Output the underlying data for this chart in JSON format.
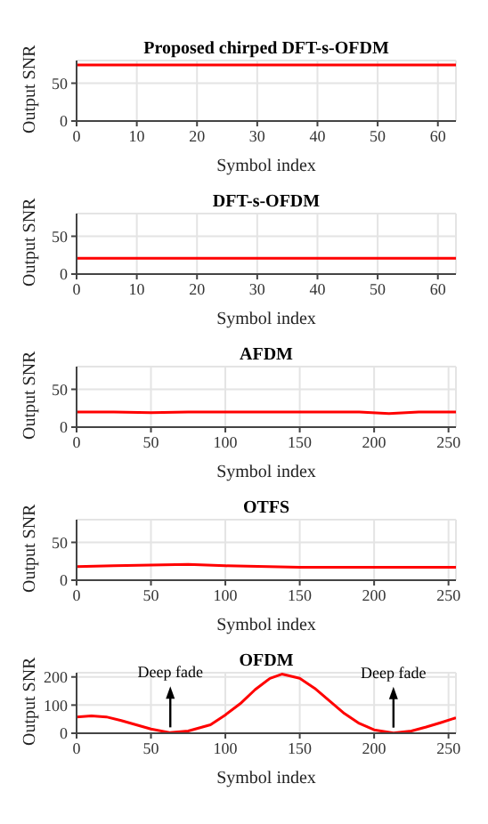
{
  "chart_data": [
    {
      "type": "line",
      "title": "Proposed chirped DFT-s-OFDM",
      "xlabel": "Symbol index",
      "ylabel": "Output SNR",
      "x": [
        0,
        63
      ],
      "series": [
        {
          "color": "#ff0000",
          "values": [
            74,
            74
          ]
        }
      ],
      "xlim": [
        0,
        63
      ],
      "xticks": [
        0,
        10,
        20,
        30,
        40,
        50,
        60
      ],
      "ylim": [
        0,
        80
      ],
      "yticks": [
        0,
        50
      ],
      "grid": true
    },
    {
      "type": "line",
      "title": "DFT-s-OFDM",
      "xlabel": "Symbol index",
      "ylabel": "Output SNR",
      "x": [
        0,
        63
      ],
      "series": [
        {
          "color": "#ff0000",
          "values": [
            21,
            21
          ]
        }
      ],
      "xlim": [
        0,
        63
      ],
      "xticks": [
        0,
        10,
        20,
        30,
        40,
        50,
        60
      ],
      "ylim": [
        0,
        80
      ],
      "yticks": [
        0,
        50
      ],
      "grid": true
    },
    {
      "type": "line",
      "title": "AFDM",
      "xlabel": "Symbol index",
      "ylabel": "Output SNR",
      "x": [
        0,
        25,
        50,
        75,
        100,
        150,
        190,
        210,
        230,
        255
      ],
      "series": [
        {
          "color": "#ff0000",
          "values": [
            20,
            20,
            19,
            20,
            20,
            20,
            20,
            18,
            20,
            20
          ]
        }
      ],
      "xlim": [
        0,
        255
      ],
      "xticks": [
        0,
        50,
        100,
        150,
        200,
        250
      ],
      "ylim": [
        0,
        80
      ],
      "yticks": [
        0,
        50
      ],
      "grid": true
    },
    {
      "type": "line",
      "title": "OTFS",
      "xlabel": "Symbol index",
      "ylabel": "Output SNR",
      "x": [
        0,
        25,
        50,
        75,
        100,
        150,
        200,
        255
      ],
      "series": [
        {
          "color": "#ff0000",
          "values": [
            18,
            19,
            20,
            21,
            19,
            17,
            17,
            17
          ]
        }
      ],
      "xlim": [
        0,
        255
      ],
      "xticks": [
        0,
        50,
        100,
        150,
        200,
        250
      ],
      "ylim": [
        0,
        80
      ],
      "yticks": [
        0,
        50
      ],
      "grid": true
    },
    {
      "type": "line",
      "title": "OFDM",
      "xlabel": "Symbol index",
      "ylabel": "Output SNR",
      "x": [
        0,
        10,
        20,
        30,
        40,
        50,
        63,
        75,
        90,
        100,
        110,
        120,
        130,
        138,
        150,
        160,
        170,
        180,
        190,
        200,
        213,
        225,
        235,
        245,
        255
      ],
      "series": [
        {
          "color": "#ff0000",
          "values": [
            58,
            62,
            58,
            45,
            30,
            15,
            2,
            8,
            30,
            65,
            105,
            155,
            195,
            210,
            195,
            160,
            115,
            70,
            35,
            12,
            1,
            8,
            22,
            38,
            55
          ]
        }
      ],
      "xlim": [
        0,
        255
      ],
      "xticks": [
        0,
        50,
        100,
        150,
        200,
        250
      ],
      "ylim": [
        0,
        215
      ],
      "yticks": [
        0,
        100,
        200
      ],
      "grid": true,
      "annotations": [
        {
          "text": "Deep fade",
          "x": 63,
          "y": 2
        },
        {
          "text": "Deep fade",
          "x": 213,
          "y": 1
        }
      ]
    }
  ]
}
